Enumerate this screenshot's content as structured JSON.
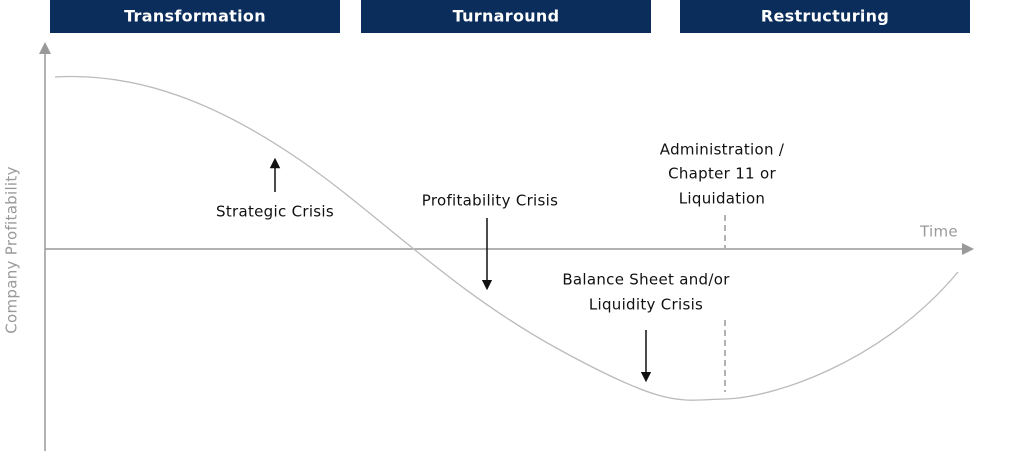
{
  "header": {
    "phases": [
      "Transformation",
      "Turnaround",
      "Restructuring"
    ]
  },
  "axes": {
    "y_label": "Company Profitability",
    "x_label": "Time"
  },
  "annotations": {
    "strategic": [
      "Strategic Crisis"
    ],
    "profitability": [
      "Profitability Crisis"
    ],
    "balance_sheet": [
      "Balance Sheet and/or",
      "Liquidity Crisis"
    ],
    "administration": [
      "Administration /",
      "Chapter 11 or",
      "Liquidation"
    ]
  }
}
